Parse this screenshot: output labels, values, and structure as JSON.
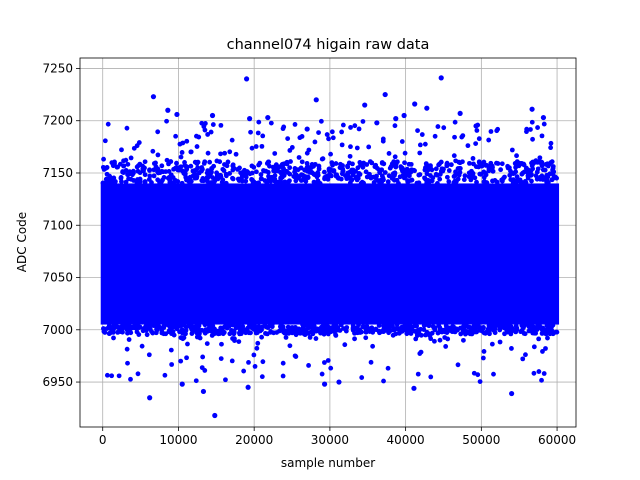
{
  "chart_data": {
    "type": "scatter",
    "title": "channel074 higain raw data",
    "xlabel": "sample number",
    "ylabel": "ADC Code",
    "xlim": [
      -3000,
      62500
    ],
    "ylim": [
      6907,
      7260
    ],
    "x_ticks": [
      0,
      10000,
      20000,
      30000,
      40000,
      50000,
      60000
    ],
    "x_tick_labels": [
      "0",
      "10000",
      "20000",
      "30000",
      "40000",
      "50000",
      "60000"
    ],
    "y_ticks": [
      6950,
      7000,
      7050,
      7100,
      7150,
      7200,
      7250
    ],
    "y_tick_labels": [
      "6950",
      "7000",
      "7050",
      "7100",
      "7150",
      "7200",
      "7250"
    ],
    "grid": true,
    "color": "#0000ff",
    "series": [
      {
        "sample_count": 60000,
        "dense_band": {
          "x": [
            0,
            59999
          ],
          "y": [
            7005,
            7140
          ],
          "mean": 7072
        },
        "outer_band": {
          "y": [
            6990,
            7175
          ]
        },
        "outliers": [
          {
            "x": 6200,
            "y": 6935
          },
          {
            "x": 6700,
            "y": 7223
          },
          {
            "x": 8600,
            "y": 7210
          },
          {
            "x": 9800,
            "y": 7206
          },
          {
            "x": 10500,
            "y": 6948
          },
          {
            "x": 13300,
            "y": 6941
          },
          {
            "x": 14500,
            "y": 7205
          },
          {
            "x": 14800,
            "y": 6918
          },
          {
            "x": 19000,
            "y": 7240
          },
          {
            "x": 19400,
            "y": 7202
          },
          {
            "x": 19200,
            "y": 6945
          },
          {
            "x": 21800,
            "y": 7203
          },
          {
            "x": 27000,
            "y": 7192
          },
          {
            "x": 28200,
            "y": 7220
          },
          {
            "x": 29300,
            "y": 6948
          },
          {
            "x": 31200,
            "y": 6950
          },
          {
            "x": 34600,
            "y": 7215
          },
          {
            "x": 36200,
            "y": 7198
          },
          {
            "x": 37300,
            "y": 7225
          },
          {
            "x": 38700,
            "y": 7202
          },
          {
            "x": 39800,
            "y": 7205
          },
          {
            "x": 41200,
            "y": 7216
          },
          {
            "x": 41100,
            "y": 6944
          },
          {
            "x": 42800,
            "y": 7212
          },
          {
            "x": 44700,
            "y": 7241
          },
          {
            "x": 47200,
            "y": 7207
          },
          {
            "x": 49300,
            "y": 7195
          },
          {
            "x": 54000,
            "y": 6939
          },
          {
            "x": 56700,
            "y": 7211
          },
          {
            "x": 58200,
            "y": 7203
          }
        ]
      }
    ]
  }
}
